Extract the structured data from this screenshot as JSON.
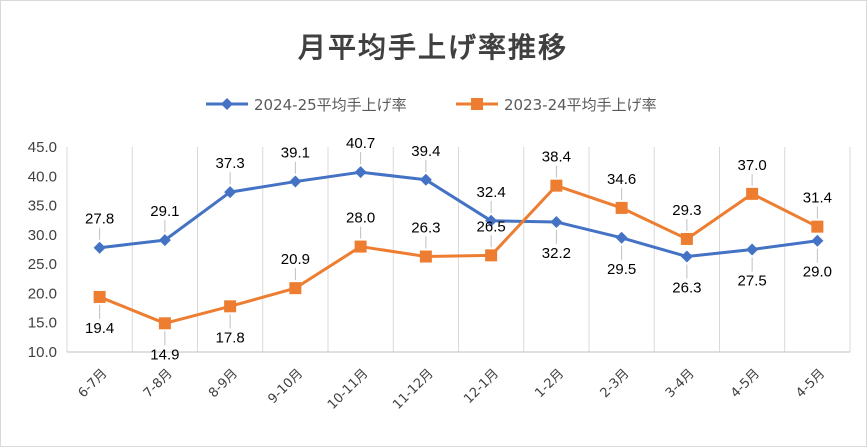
{
  "chart_data": {
    "type": "line",
    "title": "月平均手上げ率推移",
    "categories": [
      "6-7月",
      "7-8月",
      "8-9月",
      "9-10月",
      "10-11月",
      "11-12月",
      "12-1月",
      "1-2月",
      "2-3月",
      "3-4月",
      "4-5月",
      "4-5月"
    ],
    "series": [
      {
        "name": "2024-25平均手上げ率",
        "color": "#4472C4",
        "marker": "diamond",
        "values": [
          27.8,
          29.1,
          37.3,
          39.1,
          40.7,
          39.4,
          32.4,
          32.2,
          29.5,
          26.3,
          27.5,
          29.0
        ]
      },
      {
        "name": "2023-24平均手上げ率",
        "color": "#ED7D31",
        "marker": "square",
        "values": [
          19.4,
          14.9,
          17.8,
          20.9,
          28.0,
          26.3,
          26.5,
          38.4,
          34.6,
          29.3,
          37.0,
          31.4
        ]
      }
    ],
    "labels": {
      "s0": [
        "27.8",
        "29.1",
        "37.3",
        "39.1",
        "40.7",
        "39.4",
        "32.4",
        "32.2",
        "29.5",
        "26.3",
        "27.5",
        "29.0"
      ],
      "s1": [
        "19.4",
        "14.9",
        "17.8",
        "20.9",
        "28.0",
        "26.3",
        "26.5",
        "38.4",
        "34.6",
        "29.3",
        "37.0",
        "31.4"
      ]
    },
    "ylim": [
      10.0,
      45.0
    ],
    "yticks": [
      "10.0",
      "15.0",
      "20.0",
      "25.0",
      "30.0",
      "35.0",
      "40.0",
      "45.0"
    ],
    "grid": "vertical",
    "legend": "top-center"
  }
}
